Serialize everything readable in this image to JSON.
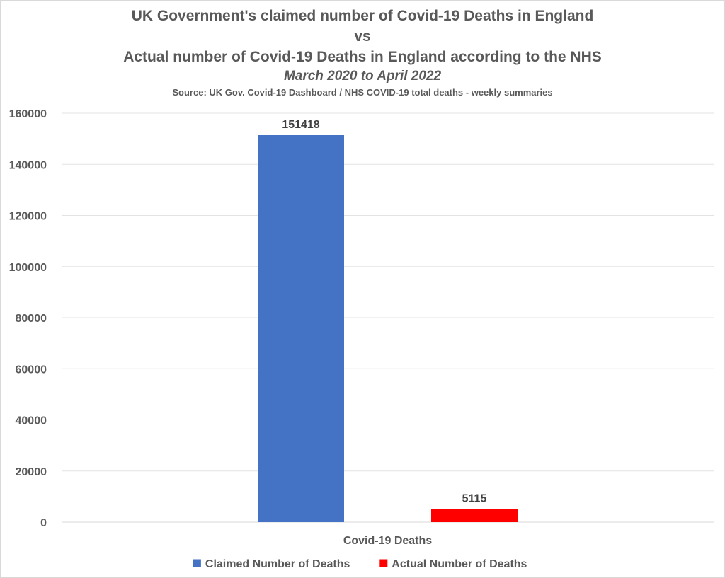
{
  "chart_data": {
    "type": "bar",
    "title_lines": [
      "UK Government's claimed number of Covid-19 Deaths in England",
      "vs",
      "Actual number of Covid-19 Deaths in England according to the NHS"
    ],
    "subtitle": "March 2020 to April 2022",
    "source": "Source: UK Gov. Covid-19 Dashboard  / NHS COVID-19 total deaths - weekly summaries",
    "categories": [
      "Covid-19 Deaths"
    ],
    "series": [
      {
        "name": "Claimed Number of Deaths",
        "values": [
          151418
        ],
        "color": "#4472c4"
      },
      {
        "name": "Actual Number of Deaths",
        "values": [
          5115
        ],
        "color": "#ff0000"
      }
    ],
    "ylim": [
      0,
      160000
    ],
    "yticks": [
      0,
      20000,
      40000,
      60000,
      80000,
      100000,
      120000,
      140000,
      160000
    ],
    "grid": true,
    "legend_position": "bottom",
    "data_labels": true
  }
}
